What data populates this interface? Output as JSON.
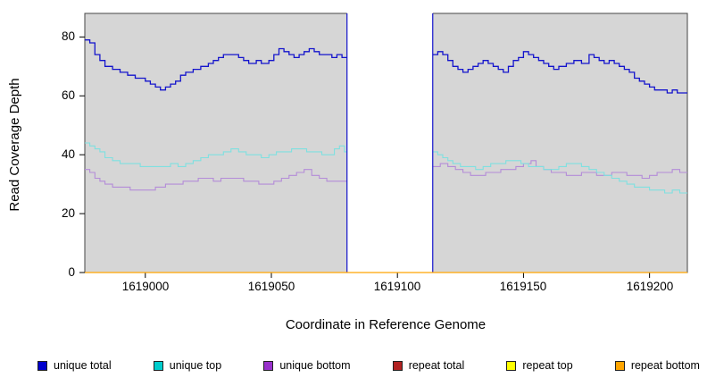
{
  "chart_data": {
    "type": "line",
    "title": "",
    "xlabel": "Coordinate in Reference Genome",
    "ylabel": "Read Coverage Depth",
    "x_range": [
      1618976,
      1619215
    ],
    "y_range": [
      0,
      88
    ],
    "x_ticks": [
      1619000,
      1619050,
      1619100,
      1619150,
      1619200
    ],
    "x_tick_labels": [
      "1619000",
      "1619050",
      "1619100",
      "1619150",
      "1619200"
    ],
    "y_ticks": [
      0,
      20,
      40,
      60,
      80
    ],
    "y_tick_labels": [
      "0",
      "20",
      "40",
      "60",
      "80"
    ],
    "plot_background": "#D6D6D6",
    "plot_border_color": "#454545",
    "grid": false,
    "legend_position": "bottom",
    "gap": {
      "x_start": 1619080,
      "x_end": 1619114,
      "fill": "#FFFFFF",
      "edge_color": "#1414CC"
    },
    "legend": [
      {
        "label": "unique total",
        "color": "#0000CD"
      },
      {
        "label": "unique top",
        "color": "#00CDCD"
      },
      {
        "label": "unique bottom",
        "color": "#9932CC"
      },
      {
        "label": "repeat total",
        "color": "#B22222"
      },
      {
        "label": "repeat top",
        "color": "#FFFF00"
      },
      {
        "label": "repeat bottom",
        "color": "#FFA500"
      }
    ],
    "series": [
      {
        "name": "repeat total",
        "color": "#B22222",
        "width": 1.1,
        "above_gap": false,
        "segments": [
          [
            [
              1618976,
              0
            ],
            [
              1619215,
              0
            ]
          ]
        ]
      },
      {
        "name": "repeat top",
        "color": "#FFFF00",
        "width": 1.1,
        "above_gap": false,
        "segments": [
          [
            [
              1618976,
              0
            ],
            [
              1619215,
              0
            ]
          ]
        ]
      },
      {
        "name": "unique bottom",
        "color": "#B48CD8",
        "width": 1.1,
        "above_gap": false,
        "segments": [
          [
            [
              1618976,
              35
            ],
            [
              1618978,
              34
            ],
            [
              1618980,
              32
            ],
            [
              1618982,
              31
            ],
            [
              1618984,
              30
            ],
            [
              1618987,
              29
            ],
            [
              1618990,
              29
            ],
            [
              1618994,
              28
            ],
            [
              1619000,
              28
            ],
            [
              1619004,
              29
            ],
            [
              1619008,
              30
            ],
            [
              1619012,
              30
            ],
            [
              1619015,
              31
            ],
            [
              1619018,
              31
            ],
            [
              1619021,
              32
            ],
            [
              1619024,
              32
            ],
            [
              1619027,
              31
            ],
            [
              1619030,
              32
            ],
            [
              1619033,
              32
            ],
            [
              1619036,
              32
            ],
            [
              1619039,
              31
            ],
            [
              1619042,
              31
            ],
            [
              1619045,
              30
            ],
            [
              1619048,
              30
            ],
            [
              1619051,
              31
            ],
            [
              1619054,
              32
            ],
            [
              1619057,
              33
            ],
            [
              1619060,
              34
            ],
            [
              1619063,
              35
            ],
            [
              1619066,
              33
            ],
            [
              1619069,
              32
            ],
            [
              1619072,
              31
            ],
            [
              1619075,
              31
            ],
            [
              1619080,
              31
            ]
          ],
          [
            [
              1619114,
              36
            ],
            [
              1619117,
              37
            ],
            [
              1619120,
              36
            ],
            [
              1619123,
              35
            ],
            [
              1619126,
              34
            ],
            [
              1619129,
              33
            ],
            [
              1619132,
              33
            ],
            [
              1619135,
              34
            ],
            [
              1619138,
              34
            ],
            [
              1619141,
              35
            ],
            [
              1619144,
              35
            ],
            [
              1619147,
              36
            ],
            [
              1619150,
              37
            ],
            [
              1619153,
              38
            ],
            [
              1619155,
              36
            ],
            [
              1619158,
              35
            ],
            [
              1619161,
              34
            ],
            [
              1619164,
              34
            ],
            [
              1619167,
              33
            ],
            [
              1619170,
              33
            ],
            [
              1619173,
              34
            ],
            [
              1619176,
              34
            ],
            [
              1619179,
              33
            ],
            [
              1619182,
              33
            ],
            [
              1619185,
              34
            ],
            [
              1619188,
              34
            ],
            [
              1619191,
              33
            ],
            [
              1619194,
              33
            ],
            [
              1619197,
              32
            ],
            [
              1619200,
              33
            ],
            [
              1619203,
              34
            ],
            [
              1619206,
              34
            ],
            [
              1619209,
              35
            ],
            [
              1619212,
              34
            ],
            [
              1619215,
              34
            ]
          ]
        ]
      },
      {
        "name": "unique top",
        "color": "#7FE0E0",
        "width": 1.1,
        "above_gap": false,
        "segments": [
          [
            [
              1618976,
              44
            ],
            [
              1618978,
              43
            ],
            [
              1618980,
              42
            ],
            [
              1618982,
              41
            ],
            [
              1618984,
              39
            ],
            [
              1618987,
              38
            ],
            [
              1618990,
              37
            ],
            [
              1618994,
              37
            ],
            [
              1618998,
              36
            ],
            [
              1619002,
              36
            ],
            [
              1619006,
              36
            ],
            [
              1619010,
              37
            ],
            [
              1619013,
              36
            ],
            [
              1619016,
              37
            ],
            [
              1619019,
              38
            ],
            [
              1619022,
              39
            ],
            [
              1619025,
              40
            ],
            [
              1619028,
              40
            ],
            [
              1619031,
              41
            ],
            [
              1619034,
              42
            ],
            [
              1619037,
              41
            ],
            [
              1619040,
              40
            ],
            [
              1619043,
              40
            ],
            [
              1619046,
              39
            ],
            [
              1619049,
              40
            ],
            [
              1619052,
              41
            ],
            [
              1619055,
              41
            ],
            [
              1619058,
              42
            ],
            [
              1619061,
              42
            ],
            [
              1619064,
              41
            ],
            [
              1619067,
              41
            ],
            [
              1619070,
              40
            ],
            [
              1619073,
              40
            ],
            [
              1619075,
              42
            ],
            [
              1619077,
              43
            ],
            [
              1619079,
              41
            ],
            [
              1619080,
              41
            ]
          ],
          [
            [
              1619114,
              41
            ],
            [
              1619116,
              40
            ],
            [
              1619118,
              39
            ],
            [
              1619120,
              38
            ],
            [
              1619122,
              37
            ],
            [
              1619125,
              36
            ],
            [
              1619128,
              36
            ],
            [
              1619131,
              35
            ],
            [
              1619134,
              36
            ],
            [
              1619137,
              37
            ],
            [
              1619140,
              37
            ],
            [
              1619143,
              38
            ],
            [
              1619146,
              38
            ],
            [
              1619149,
              37
            ],
            [
              1619152,
              36
            ],
            [
              1619155,
              36
            ],
            [
              1619158,
              35
            ],
            [
              1619161,
              35
            ],
            [
              1619164,
              36
            ],
            [
              1619167,
              37
            ],
            [
              1619170,
              37
            ],
            [
              1619173,
              36
            ],
            [
              1619176,
              35
            ],
            [
              1619179,
              34
            ],
            [
              1619182,
              33
            ],
            [
              1619185,
              32
            ],
            [
              1619188,
              31
            ],
            [
              1619191,
              30
            ],
            [
              1619194,
              29
            ],
            [
              1619197,
              29
            ],
            [
              1619200,
              28
            ],
            [
              1619203,
              28
            ],
            [
              1619206,
              27
            ],
            [
              1619209,
              28
            ],
            [
              1619212,
              27
            ],
            [
              1619215,
              27
            ]
          ]
        ]
      },
      {
        "name": "unique total",
        "color": "#1414CC",
        "width": 1.3,
        "above_gap": false,
        "segments": [
          [
            [
              1618976,
              79
            ],
            [
              1618978,
              78
            ],
            [
              1618980,
              74
            ],
            [
              1618982,
              72
            ],
            [
              1618984,
              70
            ],
            [
              1618987,
              69
            ],
            [
              1618990,
              68
            ],
            [
              1618993,
              67
            ],
            [
              1618996,
              66
            ],
            [
              1619000,
              65
            ],
            [
              1619002,
              64
            ],
            [
              1619004,
              63
            ],
            [
              1619006,
              62
            ],
            [
              1619008,
              63
            ],
            [
              1619010,
              64
            ],
            [
              1619012,
              65
            ],
            [
              1619014,
              67
            ],
            [
              1619016,
              68
            ],
            [
              1619019,
              69
            ],
            [
              1619022,
              70
            ],
            [
              1619025,
              71
            ],
            [
              1619027,
              72
            ],
            [
              1619029,
              73
            ],
            [
              1619031,
              74
            ],
            [
              1619035,
              74
            ],
            [
              1619037,
              73
            ],
            [
              1619039,
              72
            ],
            [
              1619041,
              71
            ],
            [
              1619044,
              72
            ],
            [
              1619046,
              71
            ],
            [
              1619049,
              72
            ],
            [
              1619051,
              74
            ],
            [
              1619053,
              76
            ],
            [
              1619055,
              75
            ],
            [
              1619057,
              74
            ],
            [
              1619059,
              73
            ],
            [
              1619061,
              74
            ],
            [
              1619063,
              75
            ],
            [
              1619065,
              76
            ],
            [
              1619067,
              75
            ],
            [
              1619069,
              74
            ],
            [
              1619072,
              74
            ],
            [
              1619074,
              73
            ],
            [
              1619076,
              74
            ],
            [
              1619078,
              73
            ],
            [
              1619080,
              73
            ]
          ],
          [
            [
              1619114,
              74
            ],
            [
              1619116,
              75
            ],
            [
              1619118,
              74
            ],
            [
              1619120,
              72
            ],
            [
              1619122,
              70
            ],
            [
              1619124,
              69
            ],
            [
              1619126,
              68
            ],
            [
              1619128,
              69
            ],
            [
              1619130,
              70
            ],
            [
              1619132,
              71
            ],
            [
              1619134,
              72
            ],
            [
              1619136,
              71
            ],
            [
              1619138,
              70
            ],
            [
              1619140,
              69
            ],
            [
              1619142,
              68
            ],
            [
              1619144,
              70
            ],
            [
              1619146,
              72
            ],
            [
              1619148,
              73
            ],
            [
              1619150,
              75
            ],
            [
              1619152,
              74
            ],
            [
              1619154,
              73
            ],
            [
              1619156,
              72
            ],
            [
              1619158,
              71
            ],
            [
              1619160,
              70
            ],
            [
              1619162,
              69
            ],
            [
              1619164,
              70
            ],
            [
              1619167,
              71
            ],
            [
              1619170,
              72
            ],
            [
              1619173,
              71
            ],
            [
              1619176,
              74
            ],
            [
              1619178,
              73
            ],
            [
              1619180,
              72
            ],
            [
              1619182,
              71
            ],
            [
              1619184,
              72
            ],
            [
              1619186,
              71
            ],
            [
              1619188,
              70
            ],
            [
              1619190,
              69
            ],
            [
              1619192,
              68
            ],
            [
              1619194,
              66
            ],
            [
              1619196,
              65
            ],
            [
              1619198,
              64
            ],
            [
              1619200,
              63
            ],
            [
              1619202,
              62
            ],
            [
              1619205,
              62
            ],
            [
              1619207,
              61
            ],
            [
              1619209,
              62
            ],
            [
              1619211,
              61
            ],
            [
              1619215,
              61
            ]
          ]
        ]
      },
      {
        "name": "repeat bottom",
        "color": "#FFA500",
        "width": 1.2,
        "above_gap": true,
        "segments": [
          [
            [
              1618976,
              0
            ],
            [
              1619215,
              0
            ]
          ]
        ]
      }
    ]
  }
}
